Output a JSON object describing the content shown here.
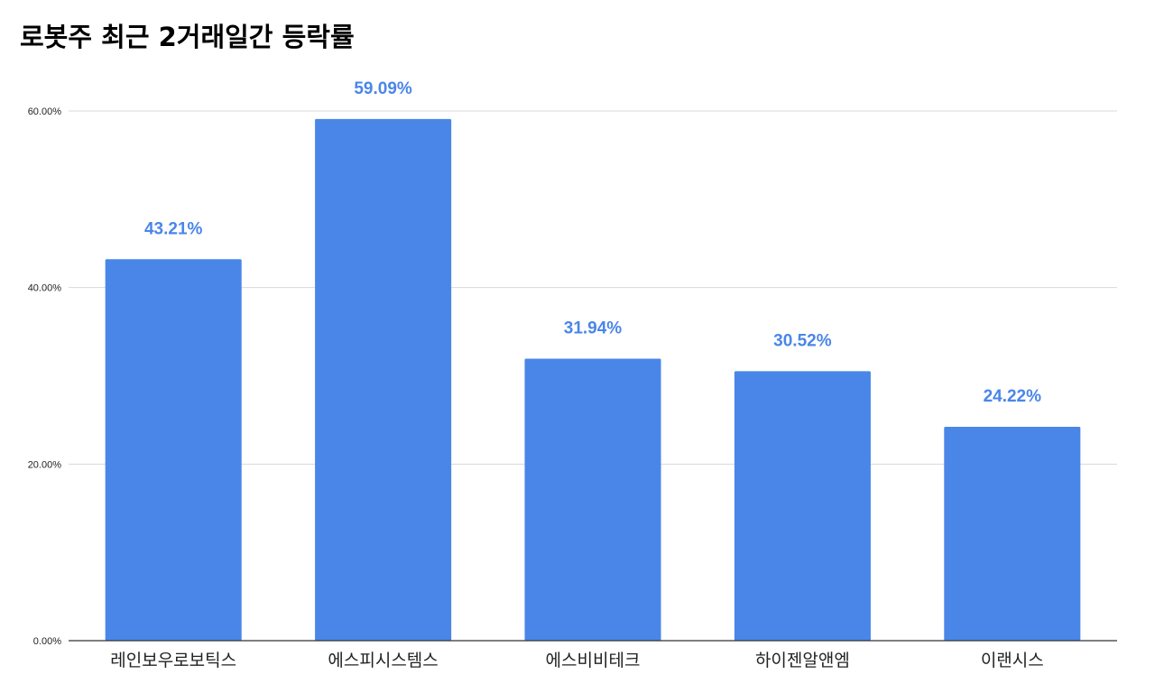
{
  "chart_data": {
    "type": "bar",
    "title": "로봇주 최근 2거래일간 등락률",
    "categories": [
      "레인보우로보틱스",
      "에스피시스템스",
      "에스비비테크",
      "하이젠알앤엠",
      "이랜시스"
    ],
    "values": [
      43.21,
      59.09,
      31.94,
      30.52,
      24.22
    ],
    "data_labels": [
      "43.21%",
      "59.09%",
      "31.94%",
      "30.52%",
      "24.22%"
    ],
    "y_ticks": [
      0,
      20,
      40,
      60
    ],
    "y_tick_labels": [
      "0.00%",
      "20.00%",
      "40.00%",
      "60.00%"
    ],
    "ylim": [
      0,
      60
    ],
    "xlabel": "",
    "ylabel": "",
    "grid": true,
    "legend": "none",
    "colors": {
      "bar": "#4a86e8",
      "data_label": "#4a86e8",
      "grid": "#d9d9d9",
      "axis": "#333333"
    }
  }
}
